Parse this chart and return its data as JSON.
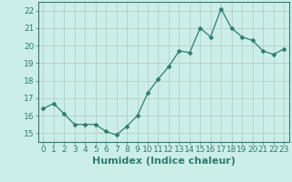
{
  "x": [
    0,
    1,
    2,
    3,
    4,
    5,
    6,
    7,
    8,
    9,
    10,
    11,
    12,
    13,
    14,
    15,
    16,
    17,
    18,
    19,
    20,
    21,
    22,
    23
  ],
  "y": [
    16.4,
    16.7,
    16.1,
    15.5,
    15.5,
    15.5,
    15.1,
    14.9,
    15.4,
    16.0,
    17.3,
    18.1,
    18.8,
    19.7,
    19.6,
    21.0,
    20.5,
    22.1,
    21.0,
    20.5,
    20.3,
    19.7,
    19.5,
    19.8
  ],
  "xlabel": "Humidex (Indice chaleur)",
  "ylim": [
    14.5,
    22.5
  ],
  "xlim": [
    -0.5,
    23.5
  ],
  "yticks": [
    15,
    16,
    17,
    18,
    19,
    20,
    21,
    22
  ],
  "xticks": [
    0,
    1,
    2,
    3,
    4,
    5,
    6,
    7,
    8,
    9,
    10,
    11,
    12,
    13,
    14,
    15,
    16,
    17,
    18,
    19,
    20,
    21,
    22,
    23
  ],
  "line_color": "#2e7d6e",
  "marker": "D",
  "marker_size": 2.5,
  "bg_color": "#cceee8",
  "grid_color": "#b0c8c4",
  "axes_color": "#2e7d6e",
  "tick_label_fontsize": 6.5,
  "xlabel_fontsize": 8
}
